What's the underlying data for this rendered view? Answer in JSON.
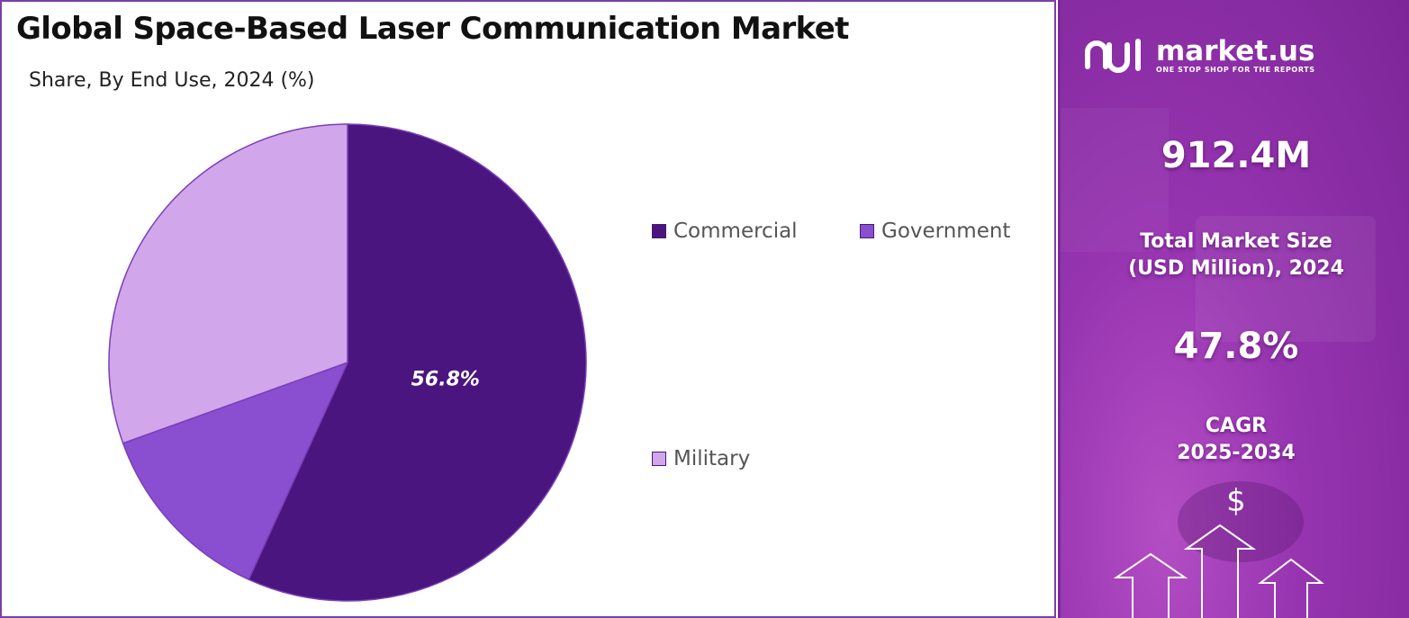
{
  "header": {
    "title": "Global Space-Based Laser Communication Market",
    "subtitle": "Share, By End Use, 2024 (%)"
  },
  "chart_data": {
    "type": "pie",
    "title": "Global Space-Based Laser Communication Market",
    "subtitle": "Share, By End Use, 2024 (%)",
    "categories": [
      "Commercial",
      "Government",
      "Military"
    ],
    "values": [
      56.8,
      12.7,
      30.5
    ],
    "colors": [
      "#4b1580",
      "#8a4fd0",
      "#d2a6ea"
    ],
    "data_labels": [
      "56.8%",
      "",
      ""
    ],
    "legend_position": "right"
  },
  "legend": {
    "items": [
      {
        "label": "Commercial",
        "color": "#4b1580"
      },
      {
        "label": "Government",
        "color": "#8a4fd0"
      },
      {
        "label": "Military",
        "color": "#d2a6ea"
      }
    ]
  },
  "brand": {
    "name": "market.us",
    "tagline": "ONE STOP SHOP FOR THE REPORTS",
    "market_size_value": "912.4M",
    "market_size_label_line1": "Total Market Size",
    "market_size_label_line2": "(USD Million), 2024",
    "cagr_value": "47.8%",
    "cagr_label_line1": "CAGR",
    "cagr_label_line2": "2025-2034",
    "currency_symbol": "$",
    "accent_color": "#9634b0"
  }
}
